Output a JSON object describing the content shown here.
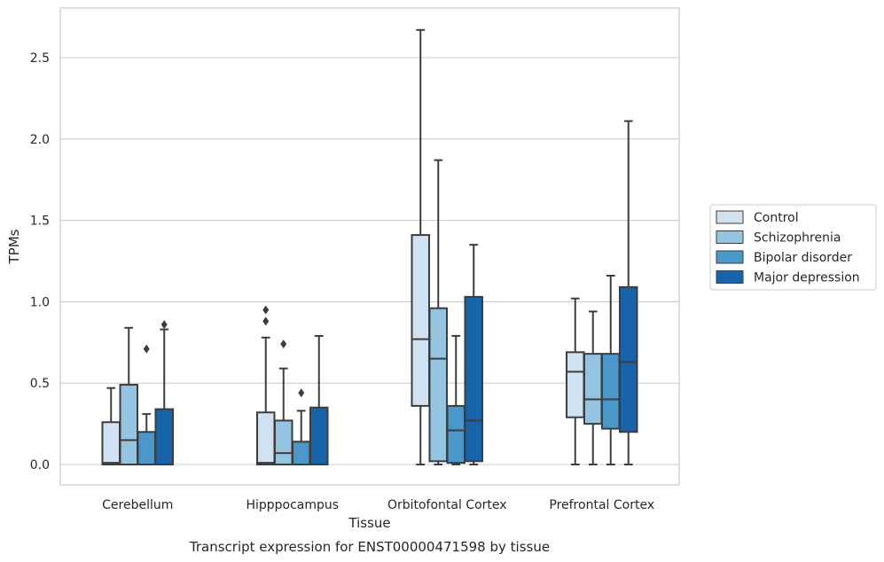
{
  "chart_data": {
    "type": "box",
    "caption": "Transcript expression for ENST00000471598 by tissue",
    "xlabel": "Tissue",
    "ylabel": "TPMs",
    "ylim": [
      -0.13,
      2.8
    ],
    "yticks": [
      "0.0",
      "0.5",
      "1.0",
      "1.5",
      "2.0",
      "2.5"
    ],
    "grid": true,
    "legend_position": "right",
    "categories": [
      "Cerebellum",
      "Hipppocampus",
      "Orbitofontal Cortex",
      "Prefrontal Cortex"
    ],
    "series": [
      {
        "name": "Control",
        "color": "#d0e1f2",
        "boxes": [
          {
            "whislo": 0.0,
            "q1": 0.0,
            "med": 0.01,
            "q3": 0.26,
            "whishi": 0.47,
            "fliers": []
          },
          {
            "whislo": 0.0,
            "q1": 0.0,
            "med": 0.01,
            "q3": 0.32,
            "whishi": 0.78,
            "fliers": [
              0.88,
              0.95
            ]
          },
          {
            "whislo": 0.0,
            "q1": 0.36,
            "med": 0.77,
            "q3": 1.41,
            "whishi": 2.67,
            "fliers": []
          },
          {
            "whislo": 0.0,
            "q1": 0.29,
            "med": 0.57,
            "q3": 0.69,
            "whishi": 1.02,
            "fliers": []
          }
        ]
      },
      {
        "name": "Schizophrenia",
        "color": "#94c4df",
        "boxes": [
          {
            "whislo": 0.0,
            "q1": 0.0,
            "med": 0.15,
            "q3": 0.49,
            "whishi": 0.84,
            "fliers": []
          },
          {
            "whislo": 0.0,
            "q1": 0.0,
            "med": 0.07,
            "q3": 0.27,
            "whishi": 0.59,
            "fliers": [
              0.74
            ]
          },
          {
            "whislo": 0.0,
            "q1": 0.02,
            "med": 0.65,
            "q3": 0.96,
            "whishi": 1.87,
            "fliers": []
          },
          {
            "whislo": 0.0,
            "q1": 0.25,
            "med": 0.4,
            "q3": 0.68,
            "whishi": 0.94,
            "fliers": []
          }
        ]
      },
      {
        "name": "Bipolar disorder",
        "color": "#4a98c9",
        "boxes": [
          {
            "whislo": 0.0,
            "q1": 0.0,
            "med": 0.0,
            "q3": 0.2,
            "whishi": 0.31,
            "fliers": [
              0.71
            ]
          },
          {
            "whislo": 0.0,
            "q1": 0.0,
            "med": 0.0,
            "q3": 0.14,
            "whishi": 0.33,
            "fliers": [
              0.44
            ]
          },
          {
            "whislo": 0.0,
            "q1": 0.01,
            "med": 0.21,
            "q3": 0.36,
            "whishi": 0.79,
            "fliers": []
          },
          {
            "whislo": 0.0,
            "q1": 0.22,
            "med": 0.4,
            "q3": 0.68,
            "whishi": 1.16,
            "fliers": []
          }
        ]
      },
      {
        "name": "Major depression",
        "color": "#1764ab",
        "boxes": [
          {
            "whislo": 0.0,
            "q1": 0.0,
            "med": 0.0,
            "q3": 0.34,
            "whishi": 0.83,
            "fliers": [
              0.86
            ]
          },
          {
            "whislo": 0.0,
            "q1": 0.0,
            "med": 0.0,
            "q3": 0.35,
            "whishi": 0.79,
            "fliers": []
          },
          {
            "whislo": 0.0,
            "q1": 0.02,
            "med": 0.27,
            "q3": 1.03,
            "whishi": 1.35,
            "fliers": []
          },
          {
            "whislo": 0.0,
            "q1": 0.2,
            "med": 0.63,
            "q3": 1.09,
            "whishi": 2.11,
            "fliers": []
          }
        ]
      }
    ]
  }
}
